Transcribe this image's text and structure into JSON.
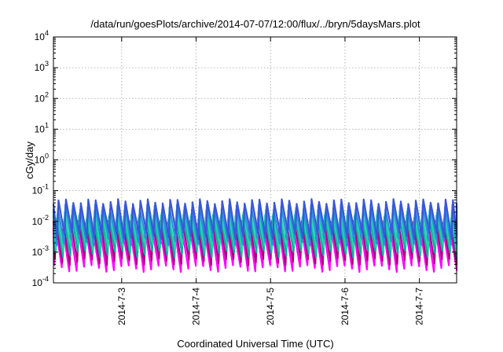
{
  "chart_data": {
    "type": "line",
    "title": "/data/run/goesPlots/archive/2014-07-07/12:00/flux/../bryn/5daysMars.plot",
    "xlabel": "Coordinated Universal Time (UTC)",
    "ylabel": "cGy/day",
    "yscale": "log",
    "ylim": [
      0.0001,
      10000
    ],
    "xlim": [
      "2014-07-02 02:00",
      "2014-07-07 12:00"
    ],
    "grid": true,
    "y_ticks": [
      {
        "base": "10",
        "exp": "-4"
      },
      {
        "base": "10",
        "exp": "-3"
      },
      {
        "base": "10",
        "exp": "-2"
      },
      {
        "base": "10",
        "exp": "-1"
      },
      {
        "base": "10",
        "exp": "0"
      },
      {
        "base": "10",
        "exp": "1"
      },
      {
        "base": "10",
        "exp": "2"
      },
      {
        "base": "10",
        "exp": "3"
      },
      {
        "base": "10",
        "exp": "4"
      }
    ],
    "x_ticks": [
      {
        "label": "2014-7-3",
        "date": "2014-07-03 00:00"
      },
      {
        "label": "2014-7-4",
        "date": "2014-07-04 00:00"
      },
      {
        "label": "2014-7-5",
        "date": "2014-07-05 00:00"
      },
      {
        "label": "2014-7-6",
        "date": "2014-07-06 00:00"
      },
      {
        "label": "2014-7-7",
        "date": "2014-07-07 00:00"
      }
    ],
    "sawtooth_period_hours": 2.4,
    "series": [
      {
        "color": "#ff00ff",
        "peak": 0.006,
        "trough": 0.0003
      },
      {
        "color": "#b0007a",
        "peak": 0.009,
        "trough": 0.0005
      },
      {
        "color": "#00b0a0",
        "peak": 0.014,
        "trough": 0.0009
      },
      {
        "color": "#1fd7a8",
        "peak": 0.02,
        "trough": 0.0014
      },
      {
        "color": "#2c8fe0",
        "peak": 0.03,
        "trough": 0.0022
      },
      {
        "color": "#3a56d8",
        "peak": 0.045,
        "trough": 0.0035
      }
    ]
  }
}
